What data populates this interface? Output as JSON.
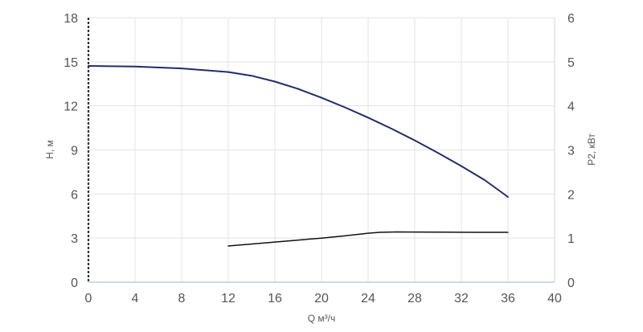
{
  "chart_data": {
    "type": "line",
    "title": "",
    "xlabel": "Q м³/ч",
    "ylabel": "H, м",
    "y2label": "P2, кВт",
    "xlim": [
      0,
      40
    ],
    "ylim": [
      0,
      18
    ],
    "y2lim": [
      0,
      6
    ],
    "x_ticks": [
      0,
      4,
      8,
      12,
      16,
      20,
      24,
      28,
      32,
      36,
      40
    ],
    "y_ticks": [
      0,
      3,
      6,
      9,
      12,
      15,
      18
    ],
    "y2_ticks": [
      0,
      1,
      2,
      3,
      4,
      5,
      6
    ],
    "grid": true,
    "legend": "none",
    "series": [
      {
        "axis": "left",
        "color": "#1f2d6b",
        "x": [
          0,
          4,
          8,
          12,
          14,
          16,
          18,
          20,
          22,
          24,
          26,
          28,
          30,
          32,
          34,
          36
        ],
        "y": [
          14.72,
          14.68,
          14.55,
          14.3,
          14.05,
          13.65,
          13.15,
          12.55,
          11.9,
          11.2,
          10.45,
          9.65,
          8.8,
          7.9,
          6.95,
          5.8
        ]
      },
      {
        "axis": "right",
        "color": "#111111",
        "x": [
          12,
          16,
          20,
          22,
          24,
          25,
          26.5,
          30,
          33,
          36
        ],
        "y": [
          0.82,
          0.91,
          1.0,
          1.05,
          1.11,
          1.13,
          1.14,
          1.135,
          1.13,
          1.13
        ]
      }
    ]
  }
}
